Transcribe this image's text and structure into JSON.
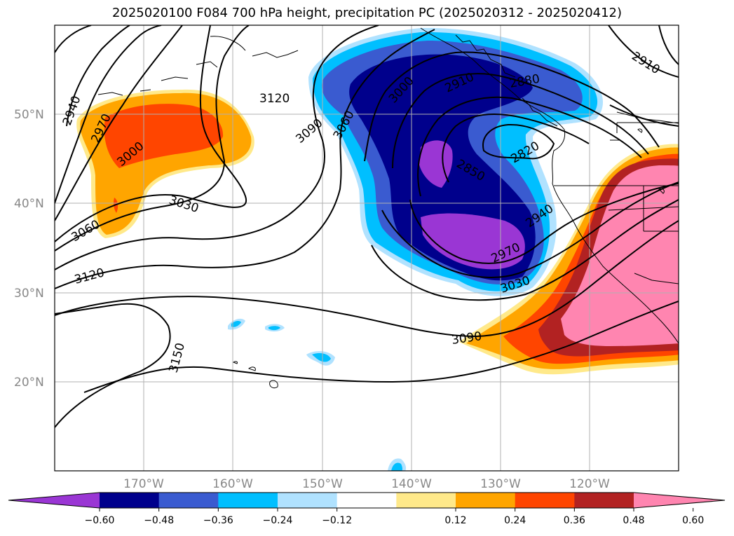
{
  "title": "2025020100 F084 700 hPa height, precipitation PC (2025020312 - 2025020412)",
  "lat_labels": [
    "50°N",
    "40°N",
    "30°N",
    "20°N"
  ],
  "lon_labels": [
    "170°W",
    "160°W",
    "150°W",
    "140°W",
    "130°W",
    "120°W"
  ],
  "contour_labels": [
    "2940",
    "2970",
    "3000",
    "3030",
    "3060",
    "3120",
    "3120",
    "3090",
    "3060",
    "3000",
    "2910",
    "2880",
    "2910",
    "2820",
    "2850",
    "2940",
    "2970",
    "3030",
    "3090",
    "3150"
  ],
  "colorbar": {
    "ticks": [
      "−0.60",
      "−0.48",
      "−0.36",
      "−0.24",
      "−0.12",
      "0.12",
      "0.24",
      "0.36",
      "0.48",
      "0.60"
    ],
    "colors": [
      "#9a36d4",
      "#00008c",
      "#3a5bd0",
      "#00bfff",
      "#b0e2ff",
      "#ffffff",
      "#ffe98a",
      "#ffa500",
      "#ff4500",
      "#b22222",
      "#ff85b0"
    ]
  }
}
